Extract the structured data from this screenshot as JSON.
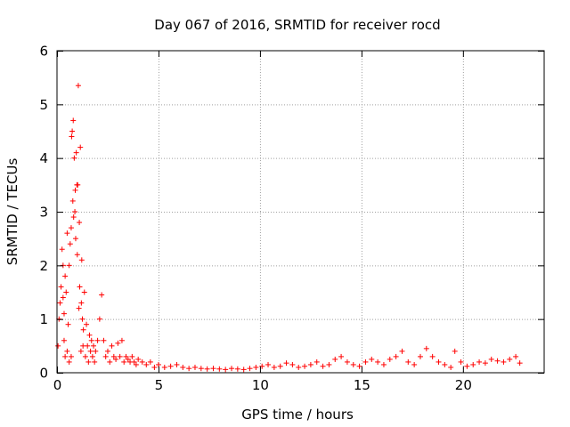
{
  "chart_data": {
    "type": "scatter",
    "title": "Day 067 of 2016, SRMTID for receiver rocd",
    "xlabel": "GPS time / hours",
    "ylabel": "SRMTID / TECUs",
    "xlim": [
      0,
      24
    ],
    "ylim": [
      0,
      6
    ],
    "xticks": [
      "0",
      "5",
      "10",
      "15",
      "20"
    ],
    "yticks": [
      "0",
      "1",
      "2",
      "3",
      "4",
      "5",
      "6"
    ],
    "grid": true,
    "marker": "+",
    "color": "#ff0000",
    "series": [
      {
        "name": "SRMTID",
        "x": [
          0.05,
          0.1,
          0.15,
          0.2,
          0.25,
          0.3,
          0.3,
          0.35,
          0.35,
          0.4,
          0.4,
          0.45,
          0.5,
          0.5,
          0.55,
          0.6,
          0.6,
          0.65,
          0.7,
          0.7,
          0.72,
          0.75,
          0.78,
          0.8,
          0.82,
          0.85,
          0.88,
          0.9,
          0.92,
          0.95,
          0.98,
          1.0,
          1.02,
          1.05,
          1.08,
          1.1,
          1.12,
          1.15,
          1.18,
          1.2,
          1.22,
          1.25,
          1.28,
          1.3,
          1.35,
          1.4,
          1.45,
          1.5,
          1.55,
          1.6,
          1.65,
          1.7,
          1.75,
          1.8,
          1.85,
          1.9,
          2.0,
          2.1,
          2.2,
          2.3,
          2.4,
          2.5,
          2.6,
          2.7,
          2.8,
          2.9,
          3.0,
          3.1,
          3.2,
          3.3,
          3.4,
          3.5,
          3.6,
          3.7,
          3.8,
          3.9,
          4.0,
          4.2,
          4.4,
          4.6,
          4.8,
          5.0,
          5.3,
          5.6,
          5.9,
          6.2,
          6.5,
          6.8,
          7.1,
          7.4,
          7.7,
          8.0,
          8.3,
          8.6,
          8.9,
          9.2,
          9.5,
          9.8,
          10.1,
          10.4,
          10.7,
          11.0,
          11.3,
          11.6,
          11.9,
          12.2,
          12.5,
          12.8,
          13.1,
          13.4,
          13.7,
          14.0,
          14.3,
          14.6,
          14.9,
          15.2,
          15.5,
          15.8,
          16.1,
          16.4,
          16.7,
          17.0,
          17.3,
          17.6,
          17.9,
          18.2,
          18.5,
          18.8,
          19.1,
          19.4,
          19.6,
          19.9,
          20.2,
          20.5,
          20.8,
          21.1,
          21.4,
          21.7,
          22.0,
          22.3,
          22.6,
          22.8
        ],
        "y": [
          0.5,
          1.0,
          1.3,
          1.6,
          2.3,
          2.0,
          1.4,
          1.1,
          0.6,
          1.8,
          0.3,
          1.5,
          2.6,
          0.4,
          0.9,
          2.0,
          0.2,
          2.4,
          2.7,
          0.3,
          4.4,
          4.5,
          3.2,
          4.7,
          2.9,
          4.0,
          3.0,
          3.4,
          2.5,
          4.1,
          3.5,
          2.2,
          3.5,
          5.35,
          1.2,
          2.8,
          1.6,
          4.2,
          0.4,
          1.3,
          2.1,
          1.0,
          0.5,
          0.8,
          1.5,
          0.3,
          0.9,
          0.5,
          0.2,
          0.7,
          0.4,
          0.6,
          0.3,
          0.5,
          0.2,
          0.4,
          0.6,
          1.0,
          1.45,
          0.6,
          0.3,
          0.4,
          0.2,
          0.5,
          0.3,
          0.25,
          0.55,
          0.3,
          0.6,
          0.2,
          0.3,
          0.25,
          0.2,
          0.3,
          0.2,
          0.15,
          0.25,
          0.2,
          0.15,
          0.2,
          0.1,
          0.15,
          0.1,
          0.12,
          0.15,
          0.1,
          0.08,
          0.1,
          0.08,
          0.07,
          0.08,
          0.07,
          0.06,
          0.08,
          0.07,
          0.06,
          0.08,
          0.1,
          0.12,
          0.15,
          0.1,
          0.12,
          0.18,
          0.15,
          0.1,
          0.12,
          0.15,
          0.2,
          0.12,
          0.15,
          0.25,
          0.3,
          0.2,
          0.15,
          0.12,
          0.2,
          0.25,
          0.2,
          0.15,
          0.25,
          0.3,
          0.4,
          0.2,
          0.15,
          0.3,
          0.45,
          0.3,
          0.2,
          0.15,
          0.1,
          0.4,
          0.2,
          0.12,
          0.15,
          0.2,
          0.18,
          0.25,
          0.22,
          0.2,
          0.25,
          0.3,
          0.18
        ]
      }
    ]
  }
}
